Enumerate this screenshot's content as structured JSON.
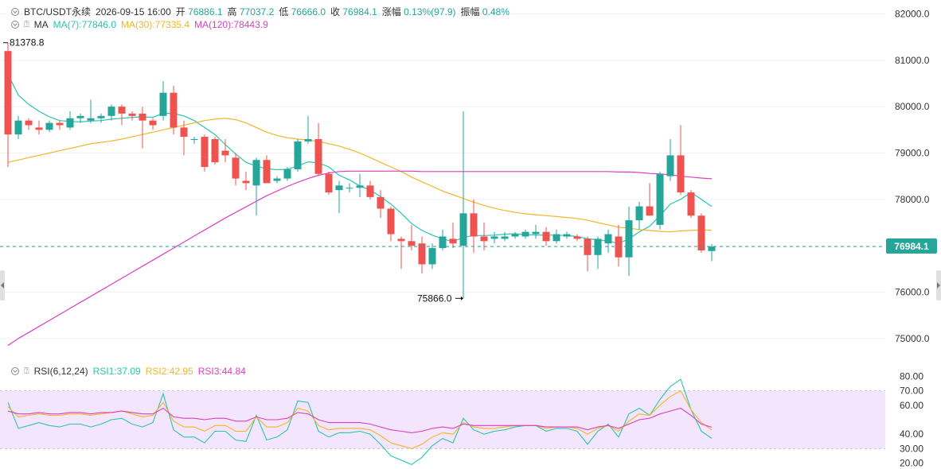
{
  "header": {
    "symbol": "BTC/USDT永续",
    "datetime": "2026-09-15 16:00",
    "open_label": "开",
    "open_value": "76886.1",
    "high_label": "高",
    "high_value": "77037.2",
    "low_label": "低",
    "low_value": "76666.0",
    "close_label": "收",
    "close_value": "76984.1",
    "change_label": "涨幅",
    "change_value": "0.13%(97.9)",
    "amplitude_label": "振幅",
    "amplitude_value": "0.48%"
  },
  "ma_legend": {
    "label": "MA",
    "ma7": "MA(7):77846.0",
    "ma30": "MA(30):77335.4",
    "ma120": "MA(120):78443.9"
  },
  "rsi_legend": {
    "label": "RSI(6,12,24)",
    "rsi1": "RSI1:37.09",
    "rsi2": "RSI2:42.95",
    "rsi3": "RSI3:44.84"
  },
  "annotations": {
    "max_label": "81378.8",
    "min_label": "75866.0",
    "last_price": "76984.1"
  },
  "colors": {
    "up": "#26a69a",
    "down": "#ef5350",
    "ma7": "#26c6b0",
    "ma30": "#f2b626",
    "ma120": "#d940c0",
    "rsi1": "#26c6b0",
    "rsi2": "#f2b626",
    "rsi3": "#d940c0",
    "rsi_band": "#f3e5fc",
    "last_line": "#26a69a"
  },
  "chart_data": [
    {
      "type": "candlestick",
      "title": "",
      "ylim": [
        74500,
        82300
      ],
      "y_ticks": [
        "82000.0",
        "81000.0",
        "80000.0",
        "79000.0",
        "78000.0",
        "77000.0",
        "76000.0",
        "75000.0"
      ],
      "ohlc": [
        [
          81200,
          81378.8,
          78700,
          79400
        ],
        [
          79400,
          79800,
          79300,
          79700
        ],
        [
          79700,
          79750,
          79500,
          79600
        ],
        [
          79550,
          79700,
          79400,
          79500
        ],
        [
          79500,
          79700,
          79450,
          79650
        ],
        [
          79650,
          79700,
          79500,
          79600
        ],
        [
          79550,
          79900,
          79500,
          79750
        ],
        [
          79750,
          79850,
          79650,
          79800
        ],
        [
          79700,
          80150,
          79650,
          79750
        ],
        [
          79750,
          79850,
          79650,
          79800
        ],
        [
          79800,
          80050,
          79700,
          80000
        ],
        [
          80000,
          80050,
          79600,
          79850
        ],
        [
          79850,
          79900,
          79700,
          79800
        ],
        [
          79850,
          80000,
          79100,
          79700
        ],
        [
          79700,
          79750,
          79500,
          79600
        ],
        [
          79800,
          80550,
          79700,
          80300
        ],
        [
          80300,
          80450,
          79400,
          79550
        ],
        [
          79550,
          79700,
          78950,
          79350
        ],
        [
          79300,
          79350,
          79200,
          79300
        ],
        [
          79350,
          79400,
          78600,
          78700
        ],
        [
          79300,
          79350,
          78750,
          78800
        ],
        [
          79050,
          79300,
          78800,
          78950
        ],
        [
          78900,
          79000,
          78300,
          78450
        ],
        [
          78400,
          78600,
          78200,
          78350
        ],
        [
          78300,
          78900,
          77650,
          78850
        ],
        [
          78850,
          78950,
          78350,
          78350
        ],
        [
          78400,
          78500,
          78350,
          78450
        ],
        [
          78450,
          78700,
          78400,
          78650
        ],
        [
          78650,
          79300,
          78600,
          79250
        ],
        [
          79250,
          79800,
          79200,
          79300
        ],
        [
          79300,
          79650,
          78500,
          78550
        ],
        [
          78550,
          78600,
          78100,
          78150
        ],
        [
          78200,
          78400,
          77700,
          78300
        ],
        [
          78250,
          78350,
          78150,
          78250
        ],
        [
          78250,
          78550,
          78050,
          78300
        ],
        [
          78300,
          78400,
          78000,
          78050
        ],
        [
          78050,
          78200,
          77600,
          77800
        ],
        [
          77800,
          77850,
          77100,
          77250
        ],
        [
          77150,
          77200,
          76500,
          77100
        ],
        [
          77100,
          77450,
          76900,
          77000
        ],
        [
          77050,
          77200,
          76400,
          76600
        ],
        [
          76600,
          77050,
          76500,
          76950
        ],
        [
          76950,
          77350,
          76900,
          77200
        ],
        [
          77150,
          77500,
          76950,
          77050
        ],
        [
          77000,
          79900,
          75866.0,
          77700
        ],
        [
          77700,
          78000,
          76850,
          77200
        ],
        [
          77200,
          77500,
          76900,
          77100
        ],
        [
          77150,
          77300,
          77050,
          77200
        ],
        [
          77150,
          77300,
          77100,
          77200
        ],
        [
          77200,
          77300,
          77150,
          77250
        ],
        [
          77200,
          77350,
          77150,
          77300
        ],
        [
          77250,
          77450,
          77150,
          77300
        ],
        [
          77300,
          77400,
          77000,
          77100
        ],
        [
          77100,
          77350,
          77050,
          77250
        ],
        [
          77200,
          77300,
          77150,
          77250
        ],
        [
          77200,
          77250,
          77100,
          77150
        ],
        [
          77150,
          77200,
          76450,
          76800
        ],
        [
          76800,
          77200,
          76500,
          77150
        ],
        [
          77050,
          77350,
          76850,
          77250
        ],
        [
          77200,
          77450,
          76550,
          76750
        ],
        [
          76750,
          77850,
          76350,
          77550
        ],
        [
          77550,
          77950,
          77350,
          77850
        ],
        [
          77850,
          78350,
          77650,
          77650
        ],
        [
          77450,
          78600,
          77350,
          78550
        ],
        [
          78500,
          79300,
          78400,
          78950
        ],
        [
          78950,
          79600,
          78100,
          78150
        ],
        [
          78150,
          78200,
          77600,
          77650
        ],
        [
          77650,
          77700,
          76850,
          76900
        ],
        [
          76886.1,
          77037.2,
          76666.0,
          76984.1
        ]
      ],
      "series": [
        {
          "name": "MA(7)",
          "values": [
            80700,
            80250,
            80050,
            79900,
            79780,
            79700,
            79680,
            79670,
            79690,
            79700,
            79730,
            79750,
            79770,
            79780,
            79770,
            79860,
            79850,
            79800,
            79700,
            79550,
            79400,
            79180,
            78980,
            78800,
            78720,
            78660,
            78640,
            78650,
            78720,
            78810,
            78790,
            78700,
            78520,
            78420,
            78290,
            78200,
            78060,
            77900,
            77700,
            77480,
            77330,
            77230,
            77150,
            77090,
            77180,
            77220,
            77220,
            77230,
            77250,
            77260,
            77240,
            77230,
            77230,
            77230,
            77220,
            77200,
            77150,
            77130,
            77100,
            77050,
            77150,
            77300,
            77420,
            77650,
            77900,
            78000,
            78150,
            78000,
            77846.0
          ]
        },
        {
          "name": "MA(30)",
          "values": [
            78800,
            78850,
            78900,
            78950,
            79000,
            79050,
            79100,
            79150,
            79200,
            79230,
            79260,
            79300,
            79350,
            79400,
            79450,
            79500,
            79550,
            79600,
            79650,
            79700,
            79730,
            79750,
            79720,
            79650,
            79550,
            79450,
            79380,
            79330,
            79300,
            79280,
            79250,
            79200,
            79150,
            79080,
            79000,
            78900,
            78800,
            78700,
            78600,
            78480,
            78380,
            78280,
            78180,
            78100,
            78020,
            77940,
            77870,
            77810,
            77760,
            77720,
            77690,
            77670,
            77650,
            77630,
            77610,
            77590,
            77550,
            77500,
            77450,
            77400,
            77380,
            77350,
            77330,
            77310,
            77300,
            77320,
            77330,
            77340,
            77335.4
          ]
        },
        {
          "name": "MA(120)",
          "values": [
            74850,
            75000,
            75130,
            75260,
            75390,
            75520,
            75650,
            75780,
            75910,
            76040,
            76170,
            76300,
            76430,
            76560,
            76690,
            76820,
            76950,
            77080,
            77210,
            77340,
            77470,
            77600,
            77720,
            77840,
            77960,
            78080,
            78180,
            78280,
            78370,
            78450,
            78520,
            78570,
            78600,
            78610,
            78610,
            78610,
            78610,
            78610,
            78610,
            78610,
            78600,
            78600,
            78600,
            78600,
            78600,
            78600,
            78600,
            78600,
            78600,
            78600,
            78600,
            78600,
            78600,
            78600,
            78600,
            78600,
            78600,
            78600,
            78600,
            78590,
            78590,
            78580,
            78560,
            78550,
            78530,
            78500,
            78480,
            78460,
            78443.9
          ]
        }
      ]
    },
    {
      "type": "line",
      "title": "",
      "ylim": [
        17,
        83
      ],
      "y_ticks": [
        "80.00",
        "70.00",
        "60.00",
        "40.00",
        "30.00",
        "20.00"
      ],
      "band": [
        30,
        70
      ],
      "series": [
        {
          "name": "RSI1",
          "values": [
            62,
            44,
            46,
            48,
            46,
            45,
            47,
            47,
            45,
            47,
            50,
            51,
            47,
            45,
            48,
            68,
            43,
            38,
            38,
            34,
            42,
            42,
            36,
            35,
            53,
            36,
            38,
            43,
            63,
            62,
            42,
            38,
            41,
            41,
            42,
            40,
            33,
            25,
            22,
            19,
            24,
            32,
            37,
            34,
            51,
            43,
            40,
            42,
            43,
            45,
            46,
            46,
            42,
            44,
            44,
            42,
            33,
            42,
            47,
            38,
            54,
            58,
            53,
            64,
            73,
            78,
            57,
            42,
            37.09
          ]
        },
        {
          "name": "RSI2",
          "values": [
            59,
            52,
            53,
            54,
            53,
            53,
            54,
            54,
            53,
            54,
            55,
            56,
            54,
            52,
            53,
            62,
            49,
            45,
            45,
            42,
            46,
            46,
            42,
            42,
            52,
            45,
            45,
            48,
            58,
            56,
            46,
            43,
            44,
            44,
            44,
            43,
            39,
            34,
            32,
            30,
            33,
            38,
            41,
            40,
            48,
            45,
            44,
            44,
            45,
            46,
            46,
            46,
            44,
            45,
            45,
            44,
            40,
            44,
            46,
            42,
            49,
            54,
            53,
            60,
            66,
            70,
            57,
            48,
            42.95
          ]
        },
        {
          "name": "RSI3",
          "values": [
            56,
            54,
            54,
            55,
            54,
            54,
            55,
            55,
            54,
            55,
            55,
            56,
            55,
            54,
            54,
            58,
            52,
            51,
            51,
            50,
            51,
            51,
            49,
            49,
            52,
            50,
            50,
            51,
            55,
            54,
            50,
            48,
            48,
            48,
            48,
            47,
            45,
            43,
            42,
            41,
            42,
            44,
            45,
            44,
            47,
            46,
            46,
            46,
            46,
            46,
            46,
            46,
            45,
            45,
            45,
            45,
            43,
            45,
            46,
            44,
            47,
            50,
            51,
            54,
            56,
            58,
            53,
            47,
            44.84
          ]
        }
      ]
    }
  ]
}
